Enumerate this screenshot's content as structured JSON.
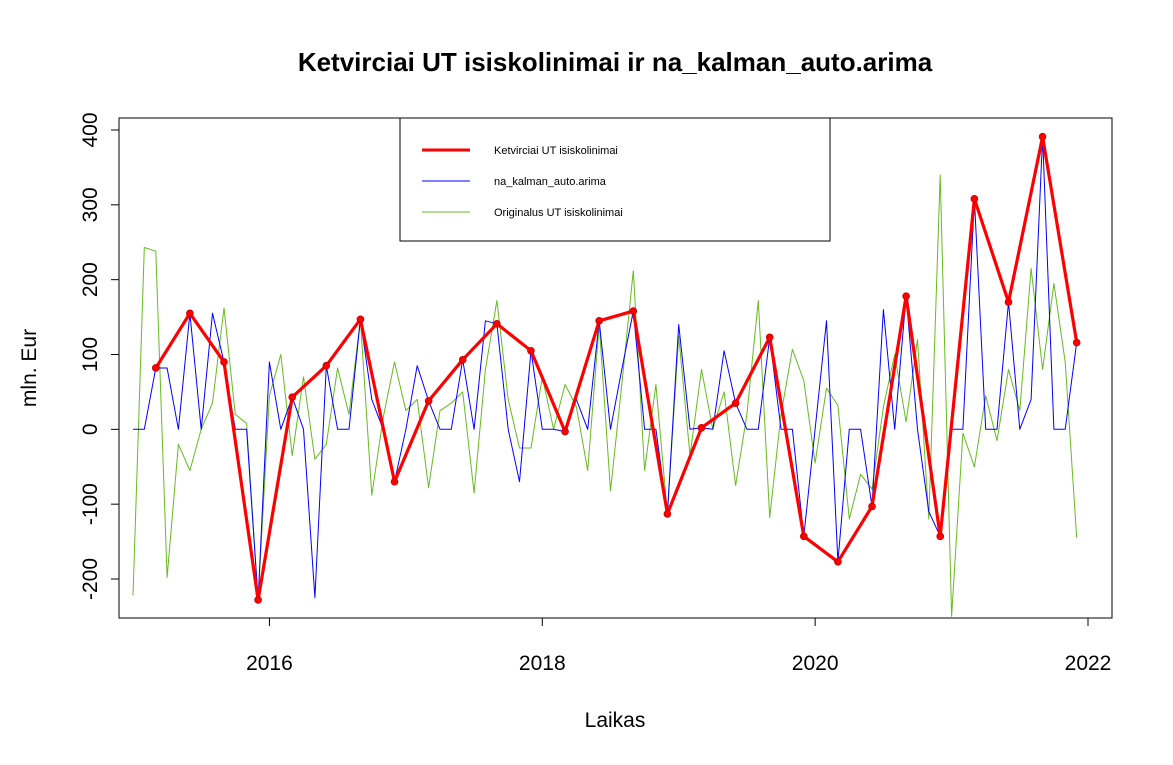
{
  "chart_data": {
    "type": "line",
    "title": "Ketvirciai UT isiskolinimai ir na_kalman_auto.arima",
    "xlabel": "Laikas",
    "ylabel": "mln. Eur",
    "xlim": [
      2015.0,
      2022.0
    ],
    "ylim": [
      -250,
      415
    ],
    "x_ticks": [
      2016,
      2018,
      2020,
      2022
    ],
    "x_tick_labels": [
      "2016",
      "2018",
      "2020",
      "2022"
    ],
    "y_ticks": [
      -200,
      -100,
      0,
      100,
      200,
      300,
      400
    ],
    "y_tick_labels": [
      "-200",
      "-100",
      "0",
      "100",
      "200",
      "300",
      "400"
    ],
    "grid": false,
    "legend_position": "top-center",
    "series": [
      {
        "name": "Ketvirciai UT isiskolinimai",
        "color": "#ff0000",
        "style": "thick-line-with-points",
        "x": [
          2015.167,
          2015.417,
          2015.667,
          2015.917,
          2016.167,
          2016.417,
          2016.667,
          2016.917,
          2017.167,
          2017.417,
          2017.667,
          2017.917,
          2018.167,
          2018.417,
          2018.667,
          2018.917,
          2019.167,
          2019.417,
          2019.667,
          2019.917,
          2020.167,
          2020.417,
          2020.667,
          2020.917,
          2021.167,
          2021.417,
          2021.667,
          2021.917
        ],
        "values": [
          82,
          155,
          90,
          -228,
          43,
          85,
          147,
          -70,
          38,
          93,
          141,
          105,
          -3,
          145,
          158,
          -113,
          2,
          35,
          123,
          -143,
          -177,
          -103,
          178,
          -143,
          308,
          170,
          391,
          116
        ]
      },
      {
        "name": "na_kalman_auto.arima",
        "color": "#0000ff",
        "style": "thin-line",
        "x": [
          2015.0,
          2015.083,
          2015.167,
          2015.25,
          2015.333,
          2015.417,
          2015.5,
          2015.583,
          2015.667,
          2015.75,
          2015.833,
          2015.917,
          2016.0,
          2016.083,
          2016.167,
          2016.25,
          2016.333,
          2016.417,
          2016.5,
          2016.583,
          2016.667,
          2016.75,
          2016.833,
          2016.917,
          2017.0,
          2017.083,
          2017.167,
          2017.25,
          2017.333,
          2017.417,
          2017.5,
          2017.583,
          2017.667,
          2017.75,
          2017.833,
          2017.917,
          2018.0,
          2018.083,
          2018.167,
          2018.25,
          2018.333,
          2018.417,
          2018.5,
          2018.583,
          2018.667,
          2018.75,
          2018.833,
          2018.917,
          2019.0,
          2019.083,
          2019.167,
          2019.25,
          2019.333,
          2019.417,
          2019.5,
          2019.583,
          2019.667,
          2019.75,
          2019.833,
          2019.917,
          2020.0,
          2020.083,
          2020.167,
          2020.25,
          2020.333,
          2020.417,
          2020.5,
          2020.583,
          2020.667,
          2020.75,
          2020.833,
          2020.917,
          2021.0,
          2021.083,
          2021.167,
          2021.25,
          2021.333,
          2021.417,
          2021.5,
          2021.583,
          2021.667,
          2021.75,
          2021.833,
          2021.917
        ],
        "values": [
          0,
          0,
          82,
          82,
          0,
          155,
          0,
          155,
          90,
          0,
          0,
          -228,
          90,
          0,
          43,
          0,
          -225,
          85,
          0,
          0,
          147,
          40,
          0,
          -70,
          0,
          85,
          38,
          0,
          0,
          93,
          0,
          145,
          141,
          0,
          -70,
          105,
          0,
          0,
          -3,
          40,
          0,
          145,
          0,
          80,
          158,
          0,
          0,
          -113,
          140,
          0,
          2,
          0,
          105,
          35,
          0,
          0,
          123,
          0,
          0,
          -143,
          0,
          145,
          -177,
          0,
          0,
          -103,
          160,
          0,
          178,
          0,
          -110,
          -143,
          0,
          0,
          308,
          0,
          0,
          170,
          0,
          40,
          391,
          0,
          0,
          116
        ]
      },
      {
        "name": "Originalus UT isiskolinimai",
        "color": "#66bb22",
        "style": "thin-line",
        "x": [
          2015.0,
          2015.083,
          2015.167,
          2015.25,
          2015.333,
          2015.417,
          2015.5,
          2015.583,
          2015.667,
          2015.75,
          2015.833,
          2015.917,
          2016.0,
          2016.083,
          2016.167,
          2016.25,
          2016.333,
          2016.417,
          2016.5,
          2016.583,
          2016.667,
          2016.75,
          2016.833,
          2016.917,
          2017.0,
          2017.083,
          2017.167,
          2017.25,
          2017.333,
          2017.417,
          2017.5,
          2017.583,
          2017.667,
          2017.75,
          2017.833,
          2017.917,
          2018.0,
          2018.083,
          2018.167,
          2018.25,
          2018.333,
          2018.417,
          2018.5,
          2018.583,
          2018.667,
          2018.75,
          2018.833,
          2018.917,
          2019.0,
          2019.083,
          2019.167,
          2019.25,
          2019.333,
          2019.417,
          2019.5,
          2019.583,
          2019.667,
          2019.75,
          2019.833,
          2019.917,
          2020.0,
          2020.083,
          2020.167,
          2020.25,
          2020.333,
          2020.417,
          2020.5,
          2020.583,
          2020.667,
          2020.75,
          2020.833,
          2020.917,
          2021.0,
          2021.083,
          2021.167,
          2021.25,
          2021.333,
          2021.417,
          2021.5,
          2021.583,
          2021.667,
          2021.75,
          2021.833,
          2021.917
        ],
        "values": [
          -222,
          243,
          238,
          -198,
          -20,
          -55,
          0,
          35,
          162,
          20,
          8,
          -228,
          45,
          100,
          -35,
          70,
          -40,
          -20,
          82,
          20,
          147,
          -88,
          15,
          90,
          25,
          40,
          -78,
          25,
          35,
          50,
          -85,
          80,
          172,
          40,
          -25,
          -25,
          70,
          0,
          60,
          30,
          -55,
          140,
          -82,
          60,
          212,
          -55,
          60,
          -113,
          125,
          -35,
          80,
          0,
          50,
          -75,
          20,
          172,
          -118,
          20,
          107,
          65,
          -45,
          55,
          32,
          -120,
          -60,
          -80,
          30,
          100,
          10,
          120,
          -120,
          340,
          -250,
          -5,
          -50,
          45,
          -15,
          80,
          25,
          215,
          80,
          195,
          90,
          -145
        ]
      }
    ]
  }
}
